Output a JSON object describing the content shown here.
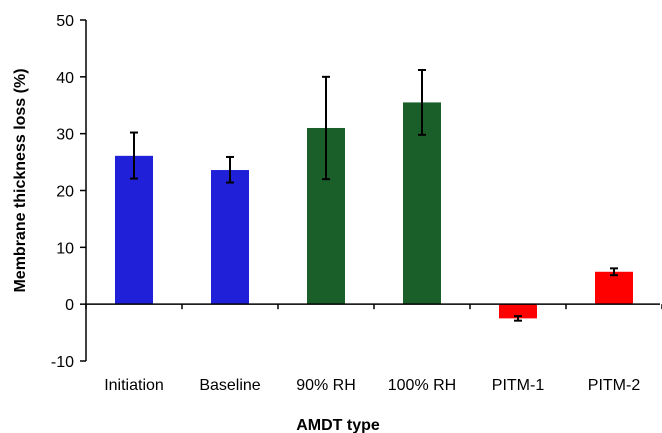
{
  "chart_data": {
    "type": "bar",
    "title": "",
    "xlabel": "AMDT type",
    "ylabel": "Membrane thickness loss (%)",
    "ylim": [
      -10,
      50
    ],
    "yticks": [
      -10,
      0,
      10,
      20,
      30,
      40,
      50
    ],
    "grid": false,
    "categories": [
      "Initiation",
      "Baseline",
      "90% RH",
      "100% RH",
      "PITM-1",
      "PITM-2"
    ],
    "values": [
      26.1,
      23.6,
      31.0,
      35.5,
      -2.5,
      5.7
    ],
    "error_low": [
      4.0,
      2.2,
      9.0,
      5.7,
      0.4,
      0.6
    ],
    "error_high": [
      4.1,
      2.3,
      9.0,
      5.7,
      0.4,
      0.6
    ],
    "bar_colors": [
      "#2020d8",
      "#2020d8",
      "#1a5e2a",
      "#1a5e2a",
      "#ff0000",
      "#ff0000"
    ],
    "error_bar_color": "#000000",
    "axis_color": "#000000"
  }
}
